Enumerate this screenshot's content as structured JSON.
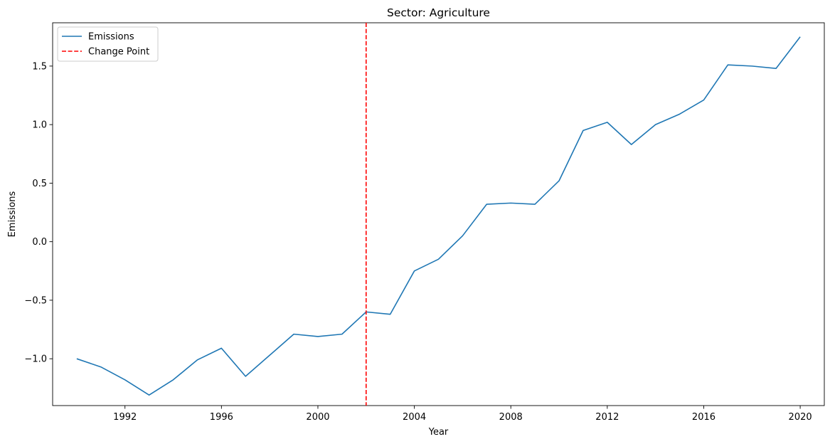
{
  "chart_data": {
    "type": "line",
    "title": "Sector: Agriculture",
    "xlabel": "Year",
    "ylabel": "Emissions",
    "xlim": [
      1989,
      2021
    ],
    "ylim": [
      -1.4,
      1.87
    ],
    "xticks": [
      1992,
      1996,
      2000,
      2004,
      2008,
      2012,
      2016,
      2020
    ],
    "yticks": [
      -1.0,
      -0.5,
      0.0,
      0.5,
      1.0,
      1.5
    ],
    "ytick_labels": [
      "−1.0",
      "−0.5",
      "0.0",
      "0.5",
      "1.0",
      "1.5"
    ],
    "grid": false,
    "legend_position": "upper-left",
    "x": [
      1990,
      1991,
      1992,
      1993,
      1994,
      1995,
      1996,
      1997,
      1998,
      1999,
      2000,
      2001,
      2002,
      2003,
      2004,
      2005,
      2006,
      2007,
      2008,
      2009,
      2010,
      2011,
      2012,
      2013,
      2014,
      2015,
      2016,
      2017,
      2018,
      2019,
      2020
    ],
    "series": [
      {
        "name": "Emissions",
        "color": "#1f77b4",
        "style": "solid",
        "values": [
          -1.0,
          -1.07,
          -1.18,
          -1.31,
          -1.18,
          -1.01,
          -0.91,
          -1.15,
          -0.97,
          -0.79,
          -0.81,
          -0.79,
          -0.6,
          -0.62,
          -0.25,
          -0.15,
          0.05,
          0.32,
          0.33,
          0.32,
          0.52,
          0.95,
          1.02,
          0.83,
          1.0,
          1.09,
          1.21,
          1.51,
          1.5,
          1.48,
          1.75
        ]
      }
    ],
    "change_point": {
      "name": "Change Point",
      "x": 2002,
      "color": "#ff0000",
      "style": "dashed"
    }
  }
}
